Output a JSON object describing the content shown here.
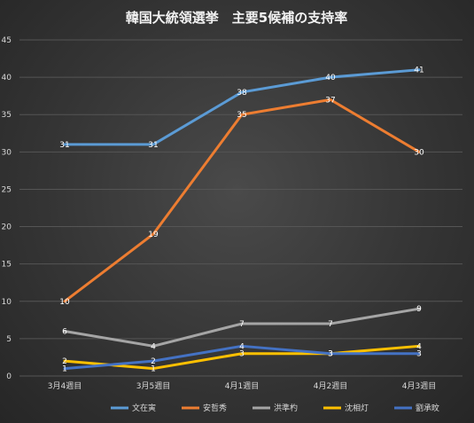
{
  "chart_data": {
    "type": "line",
    "title": "韓国大統領選挙　主要5候補の支持率",
    "categories": [
      "3月4週目",
      "3月5週目",
      "4月1週目",
      "4月2週目",
      "4月3週目"
    ],
    "ylim": [
      0,
      45
    ],
    "yticks": [
      "0",
      "5",
      "10",
      "15",
      "20",
      "25",
      "30",
      "35",
      "40",
      "45"
    ],
    "grid": true,
    "legend_position": "bottom",
    "series": [
      {
        "name": "文在寅",
        "color": "#5b9bd5",
        "values": [
          31,
          31,
          38,
          40,
          41
        ]
      },
      {
        "name": "安哲秀",
        "color": "#ed7d31",
        "values": [
          10,
          19,
          35,
          37,
          30
        ]
      },
      {
        "name": "洪準杓",
        "color": "#a5a5a5",
        "values": [
          6,
          4,
          7,
          7,
          9
        ]
      },
      {
        "name": "沈相灯",
        "color": "#ffc000",
        "values": [
          2,
          1,
          3,
          3,
          4
        ]
      },
      {
        "name": "劉承旼",
        "color": "#4472c4",
        "values": [
          1,
          2,
          4,
          3,
          3
        ]
      }
    ],
    "data_labels": [
      [
        "31",
        "31",
        "38",
        "40",
        "41"
      ],
      [
        "10",
        "19",
        "35",
        "37",
        "30"
      ],
      [
        "6",
        "4",
        "7",
        "7",
        "9"
      ],
      [
        "2",
        "1",
        "3",
        "3",
        "4"
      ],
      [
        "1",
        "2",
        "4",
        "3",
        "3"
      ]
    ]
  }
}
